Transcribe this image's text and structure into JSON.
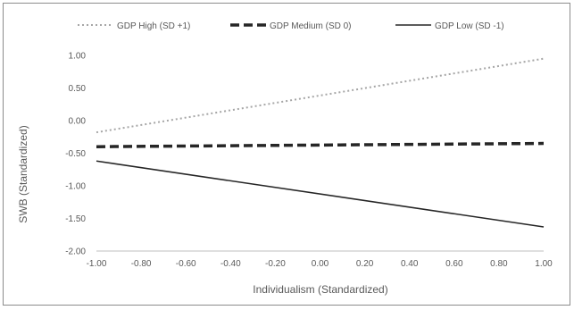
{
  "chart_data": {
    "type": "line",
    "title": "",
    "xlabel": "Individualism (Standardized)",
    "ylabel": "SWB (Standardized)",
    "xlim": [
      -1.0,
      1.0
    ],
    "ylim": [
      -2.0,
      1.0
    ],
    "x_ticks": [
      "-1.00",
      "-0.80",
      "-0.60",
      "-0.40",
      "-0.20",
      "0.00",
      "0.20",
      "0.40",
      "0.60",
      "0.80",
      "1.00"
    ],
    "y_ticks": [
      "1.00",
      "0.50",
      "0.00",
      "-0.50",
      "-1.00",
      "-1.50",
      "-2.00"
    ],
    "grid": false,
    "legend_position": "top",
    "series": [
      {
        "name": "GDP High (SD +1)",
        "style": "dotted",
        "color": "#a6a6a6",
        "x": [
          -1.0,
          1.0
        ],
        "y": [
          -0.18,
          0.95
        ]
      },
      {
        "name": "GDP Medium (SD 0)",
        "style": "dashed",
        "color": "#262626",
        "x": [
          -1.0,
          1.0
        ],
        "y": [
          -0.4,
          -0.35
        ]
      },
      {
        "name": "GDP Low (SD -1)",
        "style": "solid",
        "color": "#262626",
        "x": [
          -1.0,
          1.0
        ],
        "y": [
          -0.62,
          -1.63
        ]
      }
    ]
  }
}
